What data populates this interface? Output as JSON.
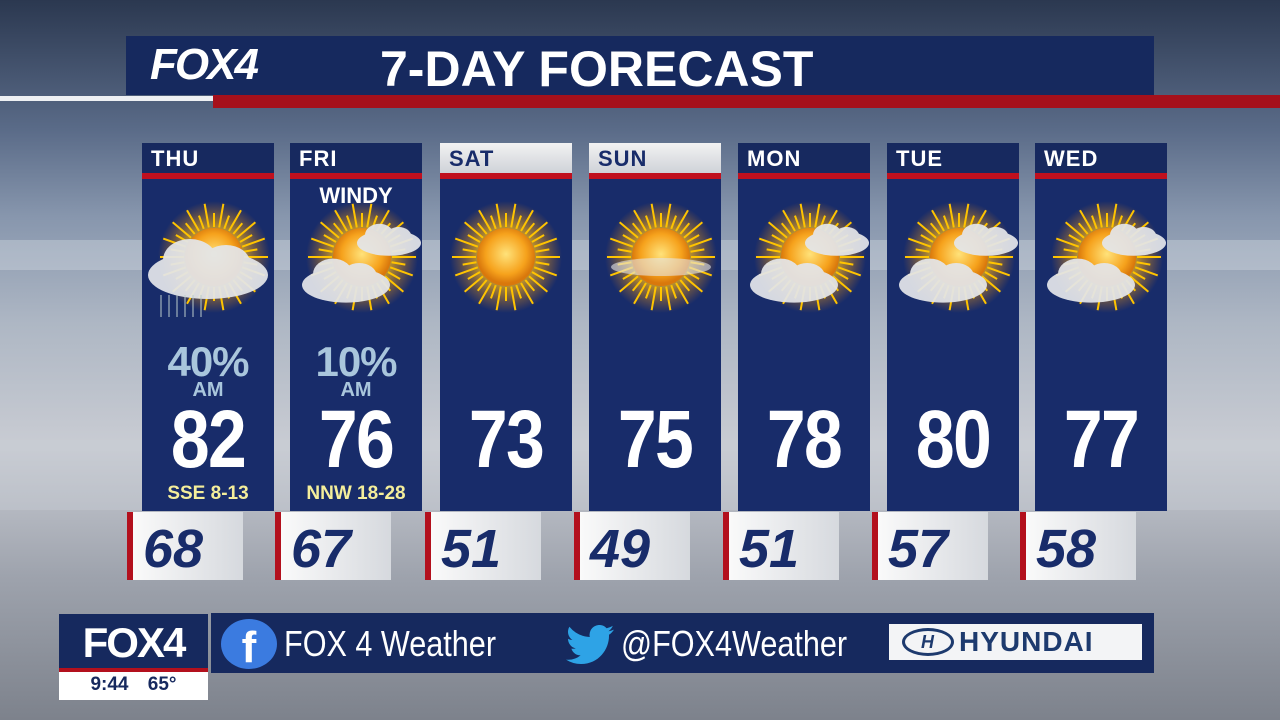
{
  "header": {
    "logo": "FOX4",
    "title": "7-DAY FORECAST"
  },
  "colors": {
    "navy": "#182c6a",
    "red": "#b3101d",
    "wind_text": "#f4ee9b",
    "precip_text": "#a9c6dc"
  },
  "days": [
    {
      "name": "THU",
      "icon": "partly-cloudy-rain-icon",
      "precip": "40%",
      "precip_time": "AM",
      "high": "82",
      "wind": "SSE 8-13",
      "low": "68",
      "note": ""
    },
    {
      "name": "FRI",
      "icon": "partly-cloudy-icon",
      "precip": "10%",
      "precip_time": "AM",
      "high": "76",
      "wind": "NNW 18-28",
      "low": "67",
      "note": "WINDY"
    },
    {
      "name": "SAT",
      "icon": "sunny-icon",
      "high": "73",
      "low": "51",
      "header_style": "light"
    },
    {
      "name": "SUN",
      "icon": "mostly-sunny-icon",
      "high": "75",
      "low": "49",
      "header_style": "light"
    },
    {
      "name": "MON",
      "icon": "partly-cloudy-icon",
      "high": "78",
      "low": "51"
    },
    {
      "name": "TUE",
      "icon": "partly-cloudy-icon",
      "high": "80",
      "low": "57"
    },
    {
      "name": "WED",
      "icon": "partly-cloudy-icon",
      "high": "77",
      "low": "58"
    }
  ],
  "footer": {
    "logo": "FOX4",
    "time": "9:44",
    "temp": "65°",
    "facebook": "FOX 4 Weather",
    "twitter": "@FOX4Weather",
    "sponsor": "HYUNDAI"
  }
}
